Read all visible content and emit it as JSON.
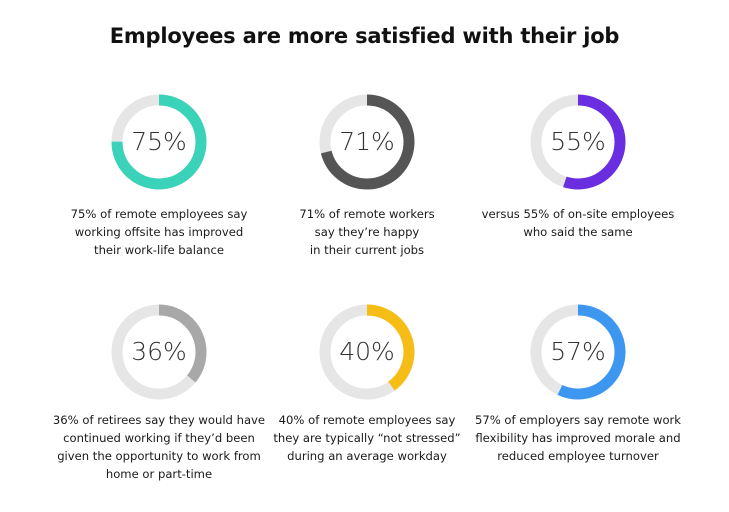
{
  "title": "Employees are more satisfied with their job",
  "colors": {
    "track": "#e6e6e6"
  },
  "chart_data": [
    {
      "type": "donut",
      "value": 75,
      "label": "75%",
      "color": "#3ad3b9",
      "caption": [
        "75% of remote employees say",
        "working offsite has improved",
        "their work-life balance"
      ]
    },
    {
      "type": "donut",
      "value": 71,
      "label": "71%",
      "color": "#555555",
      "caption": [
        "71% of remote workers",
        "say they’re happy",
        "in their current jobs"
      ]
    },
    {
      "type": "donut",
      "value": 55,
      "label": "55%",
      "color": "#6a2ee0",
      "caption": [
        "versus 55% of on-site employees",
        "who said the same"
      ]
    },
    {
      "type": "donut",
      "value": 36,
      "label": "36%",
      "color": "#a8a8a8",
      "caption": [
        "36% of retirees say they would have",
        "continued working if they’d been",
        "given the opportunity to work from",
        "home or part-time"
      ]
    },
    {
      "type": "donut",
      "value": 40,
      "label": "40%",
      "color": "#f5bd16",
      "caption": [
        "40% of remote employees say",
        "they are typically “not stressed”",
        "during an average workday"
      ]
    },
    {
      "type": "donut",
      "value": 57,
      "label": "57%",
      "color": "#3d97f0",
      "caption": [
        "57% of employers say remote work",
        "flexibility has improved morale and",
        "reduced employee turnover"
      ]
    }
  ]
}
